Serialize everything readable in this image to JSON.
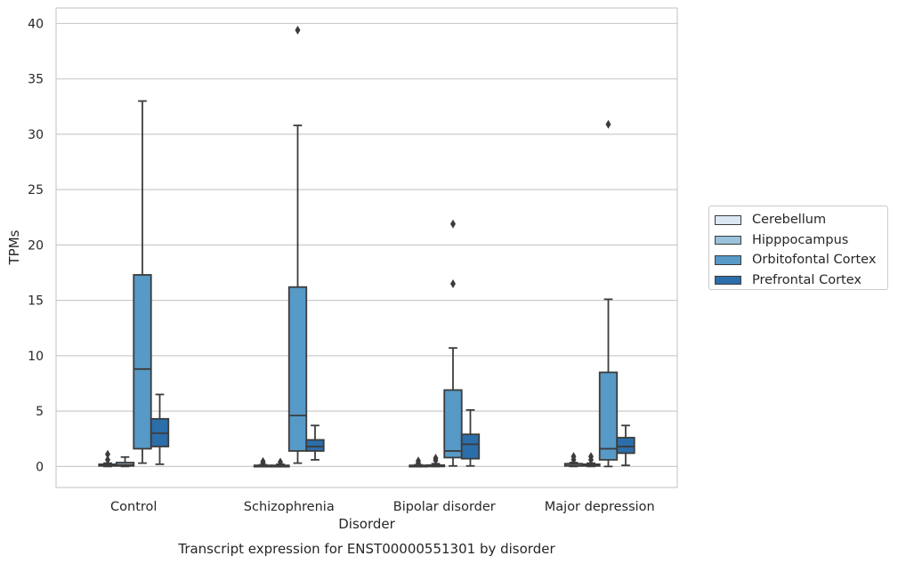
{
  "chart_data": {
    "type": "boxplot",
    "title": "",
    "caption": "Transcript expression for ENST00000551301 by disorder",
    "xlabel": "Disorder",
    "ylabel": "TPMs",
    "ylim": [
      -1.9,
      41.4
    ],
    "yticks": [
      0,
      5,
      10,
      15,
      20,
      25,
      30,
      35,
      40
    ],
    "grid": "horizontal",
    "legend_position": "right",
    "categories": [
      "Control",
      "Schizophrenia",
      "Bipolar disorder",
      "Major depression"
    ],
    "series": [
      {
        "name": "Cerebellum",
        "color": "#dbe7f3",
        "boxes": [
          {
            "whislo": 0,
            "q1": 0.05,
            "med": 0.1,
            "q3": 0.2,
            "whishi": 0.3,
            "fliers": [
              0.6,
              1.1
            ]
          },
          {
            "whislo": 0,
            "q1": 0.02,
            "med": 0.05,
            "q3": 0.1,
            "whishi": 0.15,
            "fliers": [
              0.3,
              0.45
            ]
          },
          {
            "whislo": 0,
            "q1": 0.02,
            "med": 0.05,
            "q3": 0.1,
            "whishi": 0.15,
            "fliers": [
              0.3,
              0.5
            ]
          },
          {
            "whislo": 0,
            "q1": 0.05,
            "med": 0.1,
            "q3": 0.25,
            "whishi": 0.35,
            "fliers": [
              0.6,
              0.9
            ]
          }
        ]
      },
      {
        "name": "Hipppocampus",
        "color": "#9ac2dc",
        "boxes": [
          {
            "whislo": 0,
            "q1": 0.05,
            "med": 0.15,
            "q3": 0.35,
            "whishi": 0.85,
            "fliers": []
          },
          {
            "whislo": 0,
            "q1": 0.02,
            "med": 0.05,
            "q3": 0.1,
            "whishi": 0.2,
            "fliers": [
              0.4
            ]
          },
          {
            "whislo": 0,
            "q1": 0.02,
            "med": 0.05,
            "q3": 0.12,
            "whishi": 0.25,
            "fliers": [
              0.55,
              0.75
            ]
          },
          {
            "whislo": 0,
            "q1": 0.05,
            "med": 0.1,
            "q3": 0.2,
            "whishi": 0.3,
            "fliers": [
              0.6,
              0.9
            ]
          }
        ]
      },
      {
        "name": "Orbitofontal Cortex",
        "color": "#5799c7",
        "boxes": [
          {
            "whislo": 0.3,
            "q1": 1.6,
            "med": 8.8,
            "q3": 17.3,
            "whishi": 33.0,
            "fliers": []
          },
          {
            "whislo": 0.3,
            "q1": 1.4,
            "med": 4.6,
            "q3": 16.2,
            "whishi": 30.8,
            "fliers": [
              39.4
            ]
          },
          {
            "whislo": 0.05,
            "q1": 0.8,
            "med": 1.4,
            "q3": 6.9,
            "whishi": 10.7,
            "fliers": [
              16.5,
              21.9
            ]
          },
          {
            "whislo": 0,
            "q1": 0.6,
            "med": 1.6,
            "q3": 8.5,
            "whishi": 15.1,
            "fliers": [
              30.9
            ]
          }
        ]
      },
      {
        "name": "Prefrontal Cortex",
        "color": "#2b6ea9",
        "boxes": [
          {
            "whislo": 0.2,
            "q1": 1.8,
            "med": 3.0,
            "q3": 4.3,
            "whishi": 6.5,
            "fliers": []
          },
          {
            "whislo": 0.6,
            "q1": 1.4,
            "med": 1.8,
            "q3": 2.4,
            "whishi": 3.7,
            "fliers": []
          },
          {
            "whislo": 0.05,
            "q1": 0.7,
            "med": 2.0,
            "q3": 2.9,
            "whishi": 5.1,
            "fliers": []
          },
          {
            "whislo": 0.1,
            "q1": 1.2,
            "med": 1.8,
            "q3": 2.6,
            "whishi": 3.7,
            "fliers": []
          }
        ]
      }
    ]
  }
}
